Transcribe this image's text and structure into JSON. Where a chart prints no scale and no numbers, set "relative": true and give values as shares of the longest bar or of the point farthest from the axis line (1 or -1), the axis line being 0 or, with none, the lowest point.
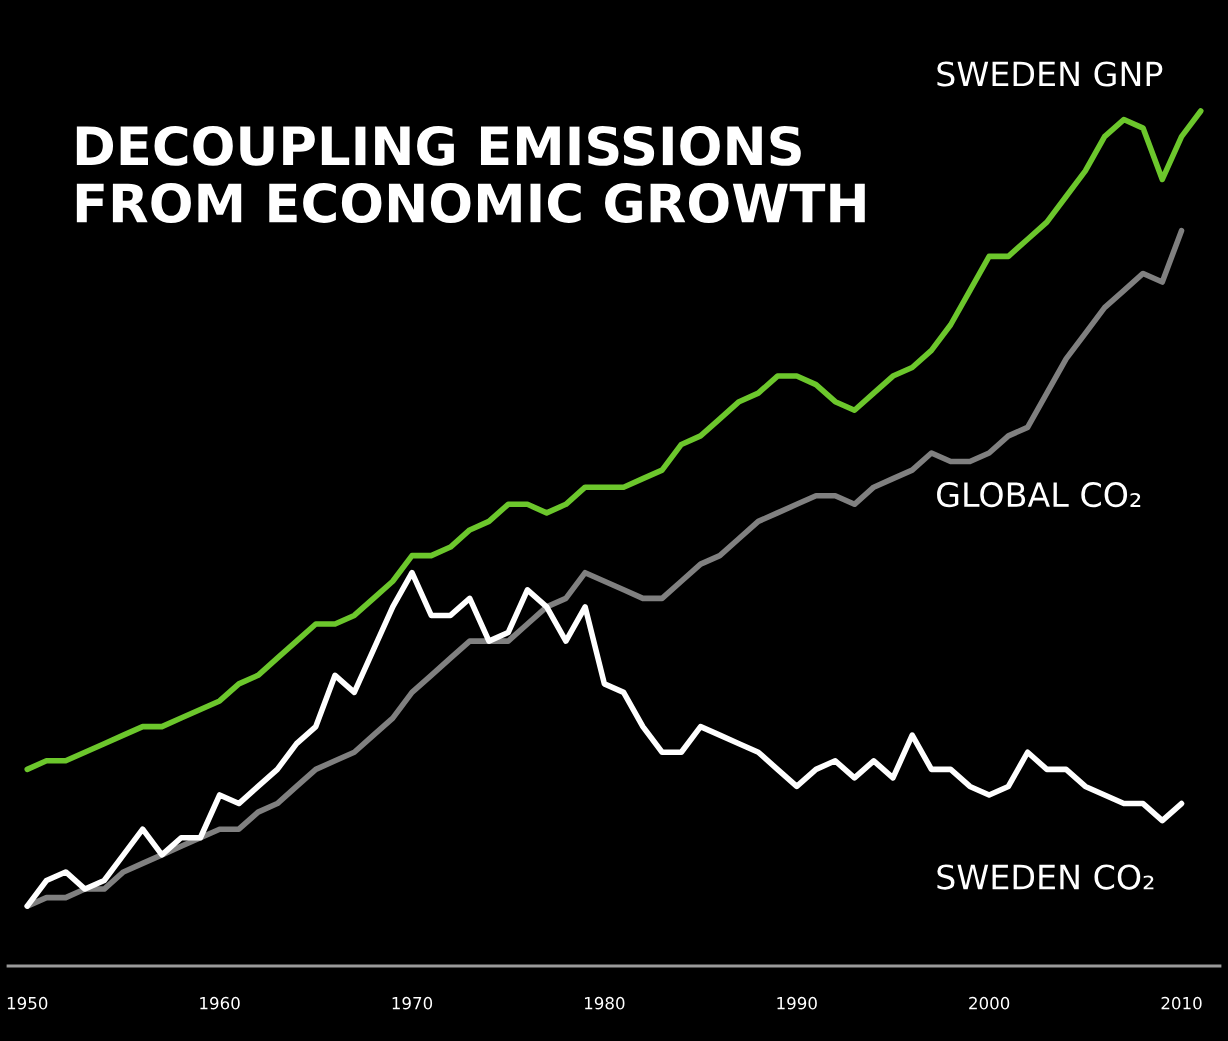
{
  "chart_data": {
    "type": "line",
    "title": "DECOUPLING EMISSIONS\nFROM ECONOMIC GROWTH",
    "relative": true,
    "x": [
      1950,
      1951,
      1952,
      1953,
      1954,
      1955,
      1956,
      1957,
      1958,
      1959,
      1960,
      1961,
      1962,
      1963,
      1964,
      1965,
      1966,
      1967,
      1968,
      1969,
      1970,
      1971,
      1972,
      1973,
      1974,
      1975,
      1976,
      1977,
      1978,
      1979,
      1980,
      1981,
      1982,
      1983,
      1984,
      1985,
      1986,
      1987,
      1988,
      1989,
      1990,
      1991,
      1992,
      1993,
      1994,
      1995,
      1996,
      1997,
      1998,
      1999,
      2000,
      2001,
      2002,
      2003,
      2004,
      2005,
      2006,
      2007,
      2008,
      2009,
      2010
    ],
    "xlim": [
      1949,
      2012
    ],
    "xticks": [
      1950,
      1960,
      1970,
      1980,
      1990,
      2000,
      2010
    ],
    "grid": false,
    "legend": false,
    "marker": "none",
    "line_style": "solid",
    "series": [
      {
        "name": "SWEDEN GNP",
        "color": "#6cc72c",
        "x": [
          1950,
          1951,
          1952,
          1953,
          1954,
          1955,
          1956,
          1957,
          1958,
          1959,
          1960,
          1961,
          1962,
          1963,
          1964,
          1965,
          1966,
          1967,
          1968,
          1969,
          1970,
          1971,
          1972,
          1973,
          1974,
          1975,
          1976,
          1977,
          1978,
          1979,
          1980,
          1981,
          1982,
          1983,
          1984,
          1985,
          1986,
          1987,
          1988,
          1989,
          1990,
          1991,
          1992,
          1993,
          1994,
          1995,
          1996,
          1997,
          1998,
          1999,
          2000,
          2001,
          2002,
          2003,
          2004,
          2005,
          2006,
          2007,
          2008,
          2009,
          2010,
          2011
        ],
        "values": [
          0.23,
          0.24,
          0.24,
          0.25,
          0.26,
          0.27,
          0.28,
          0.28,
          0.29,
          0.3,
          0.31,
          0.33,
          0.34,
          0.36,
          0.38,
          0.4,
          0.4,
          0.41,
          0.43,
          0.45,
          0.48,
          0.48,
          0.49,
          0.51,
          0.52,
          0.54,
          0.54,
          0.53,
          0.54,
          0.56,
          0.56,
          0.56,
          0.57,
          0.58,
          0.61,
          0.62,
          0.64,
          0.66,
          0.67,
          0.69,
          0.69,
          0.68,
          0.66,
          0.65,
          0.67,
          0.69,
          0.7,
          0.72,
          0.75,
          0.79,
          0.83,
          0.83,
          0.85,
          0.87,
          0.9,
          0.93,
          0.97,
          0.99,
          0.98,
          0.92,
          0.97,
          1
        ]
      },
      {
        "name": "GLOBAL CO₂",
        "color": "#808080",
        "values": [
          0.07,
          0.08,
          0.08,
          0.09,
          0.09,
          0.11,
          0.12,
          0.13,
          0.14,
          0.15,
          0.16,
          0.16,
          0.18,
          0.19,
          0.21,
          0.23,
          0.24,
          0.25,
          0.27,
          0.29,
          0.32,
          0.34,
          0.36,
          0.38,
          0.38,
          0.38,
          0.4,
          0.42,
          0.43,
          0.46,
          0.45,
          0.44,
          0.43,
          0.43,
          0.45,
          0.47,
          0.48,
          0.5,
          0.52,
          0.53,
          0.54,
          0.55,
          0.55,
          0.54,
          0.56,
          0.57,
          0.58,
          0.6,
          0.59,
          0.59,
          0.6,
          0.62,
          0.63,
          0.67,
          0.71,
          0.74,
          0.77,
          0.79,
          0.81,
          0.8,
          0.86
        ]
      },
      {
        "name": "SWEDEN CO₂",
        "color": "#ffffff",
        "values": [
          0.07,
          0.1,
          0.11,
          0.09,
          0.1,
          0.13,
          0.16,
          0.13,
          0.15,
          0.15,
          0.2,
          0.19,
          0.21,
          0.23,
          0.26,
          0.28,
          0.34,
          0.32,
          0.37,
          0.42,
          0.46,
          0.41,
          0.41,
          0.43,
          0.38,
          0.39,
          0.44,
          0.42,
          0.38,
          0.42,
          0.33,
          0.32,
          0.28,
          0.25,
          0.25,
          0.28,
          0.27,
          0.26,
          0.25,
          0.23,
          0.21,
          0.23,
          0.24,
          0.22,
          0.24,
          0.22,
          0.27,
          0.23,
          0.23,
          0.21,
          0.2,
          0.21,
          0.25,
          0.23,
          0.23,
          0.21,
          0.2,
          0.19,
          0.19,
          0.17,
          0.19
        ]
      }
    ]
  }
}
